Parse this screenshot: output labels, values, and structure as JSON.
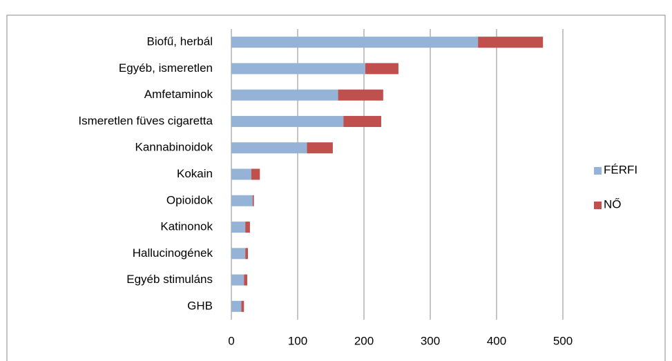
{
  "chart_data": {
    "type": "stacked-barh",
    "categories": [
      "Biofű, herbál",
      "Egyéb, ismeretlen",
      "Amfetaminok",
      "Ismeretlen füves cigaretta",
      "Kannabinoidok",
      "Kokain",
      "Opioidok",
      "Katinonok",
      "Hallucinogének",
      "Egyéb stimuláns",
      "GHB"
    ],
    "series": [
      {
        "name": "FÉRFI",
        "color": "#95b3d7",
        "values": [
          372,
          202,
          161,
          169,
          114,
          30,
          32,
          21,
          21,
          19,
          15
        ]
      },
      {
        "name": "NŐ",
        "color": "#c0504d",
        "values": [
          98,
          50,
          68,
          57,
          39,
          13,
          2,
          7,
          4,
          5,
          4
        ]
      }
    ],
    "xlim": [
      0,
      500
    ],
    "xticks": [
      0,
      100,
      200,
      300,
      400,
      500
    ],
    "grid": true,
    "legend": "right"
  }
}
